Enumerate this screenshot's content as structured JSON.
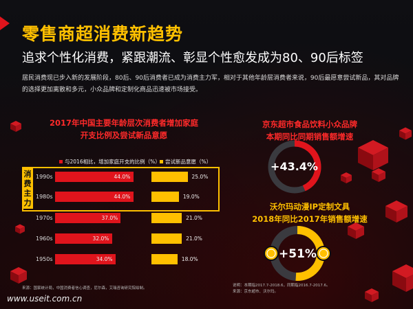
{
  "header": {
    "title": "零售商超消费新趋势",
    "subtitle": "追求个性化消费，紧跟潮流、彰显个性愈发成为80、90后标签",
    "description": "居民消费现已步入新的发展阶段，80后、90后消费者已成为消费主力军，相对于其他年龄层消费者来说，90后最愿意尝试新品，其对品牌的选择更加离散和多元，小众品牌和定制化商品迅速被市场接受。"
  },
  "left_panel": {
    "title_line1": "2017年中国主要年龄层次消费者增加家庭",
    "title_line2": "开支比例及尝试新品意愿",
    "highlight_tag": "消费主力",
    "source": "来源：国家统计局，中国消费者信心调查，尼尔森，艾瑞咨询研究院绘制。"
  },
  "right_panel": {
    "stat1_title_line1": "京东超市食品饮料小众品牌",
    "stat1_title_line2": "本期同比同期销售额增速",
    "stat1_value": "+43.4%",
    "stat2_title_line1": "沃尔玛动漫IP定制文具",
    "stat2_title_line2": "2018年同比2017年销售额增速",
    "stat2_value": "+51%",
    "note_line1": "说明：本期指2017.7-2018.6，同期指2016.7-2017.6。",
    "note_line2": "来源：京东超市、沃尔玛。"
  },
  "watermark": "www.useit.com.cn",
  "colors": {
    "red": "#e0141c",
    "yellow": "#ffc000",
    "title": "#ffc000",
    "accent_text": "#ff2a2a"
  },
  "chart_data": [
    {
      "type": "bar",
      "orientation": "horizontal",
      "title": "2017年中国主要年龄层次消费者增加家庭开支比例及尝试新品意愿",
      "categories": [
        "1990s",
        "1980s",
        "1970s",
        "1960s",
        "1950s"
      ],
      "series": [
        {
          "name": "与2016相比，增加家庭开支的比例（%）",
          "color": "#e0141c",
          "values": [
            44.0,
            44.0,
            37.0,
            32.0,
            34.0
          ],
          "labels": [
            "44.0%",
            "44.0%",
            "37.0%",
            "32.0%",
            "34.0%"
          ]
        },
        {
          "name": "尝试新品意愿（%）",
          "color": "#ffc000",
          "values": [
            25.0,
            19.0,
            21.0,
            21.0,
            18.0
          ],
          "labels": [
            "25.0%",
            "19.0%",
            "21.0%",
            "21.0%",
            "18.0%"
          ]
        }
      ]
    },
    {
      "type": "pie",
      "title": "京东超市食品饮料小众品牌本期同比同期销售额增速",
      "value": 43.4,
      "label": "+43.4%",
      "color": "#e0141c"
    },
    {
      "type": "pie",
      "title": "沃尔玛动漫IP定制文具2018年同比2017年销售额增速",
      "value": 51,
      "label": "+51%",
      "color": "#ffc000"
    }
  ]
}
